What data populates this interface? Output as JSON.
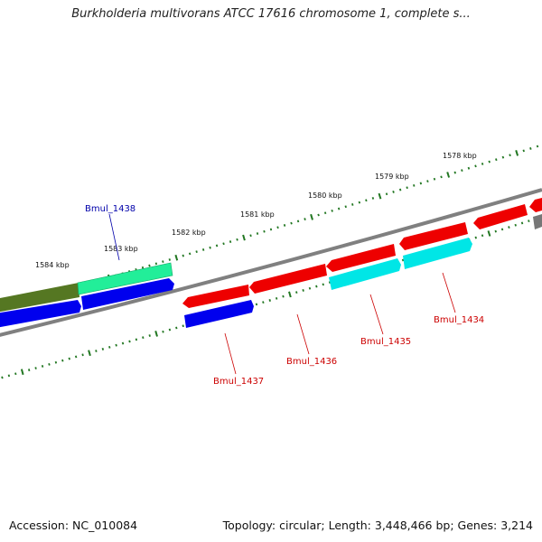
{
  "title": "Burkholderia multivorans ATCC 17616 chromosome 1, complete s...",
  "footer": {
    "accession": "Accession: NC_010084",
    "summary": "Topology: circular; Length: 3,448,466 bp; Genes: 3,214"
  },
  "ruler_labels": [
    "1578 kbp",
    "1579 kbp",
    "1580 kbp",
    "1581 kbp",
    "1582 kbp",
    "1583 kbp",
    "1584 kbp"
  ],
  "gene_labels": [
    {
      "name": "Bmul_1438",
      "color": "#0000aa"
    },
    {
      "name": "Bmul_1437",
      "color": "#cc0000"
    },
    {
      "name": "Bmul_1436",
      "color": "#cc0000"
    },
    {
      "name": "Bmul_1435",
      "color": "#cc0000"
    },
    {
      "name": "Bmul_1434",
      "color": "#cc0000"
    }
  ],
  "colors": {
    "backbone": "#808080",
    "ticks": "#227722",
    "gene_red": "#ee0000",
    "gene_blue": "#0000ee",
    "gene_cyan": "#00e6e6",
    "gene_green": "#22ee99",
    "gene_olive": "#557722",
    "gene_gray": "#777777"
  }
}
